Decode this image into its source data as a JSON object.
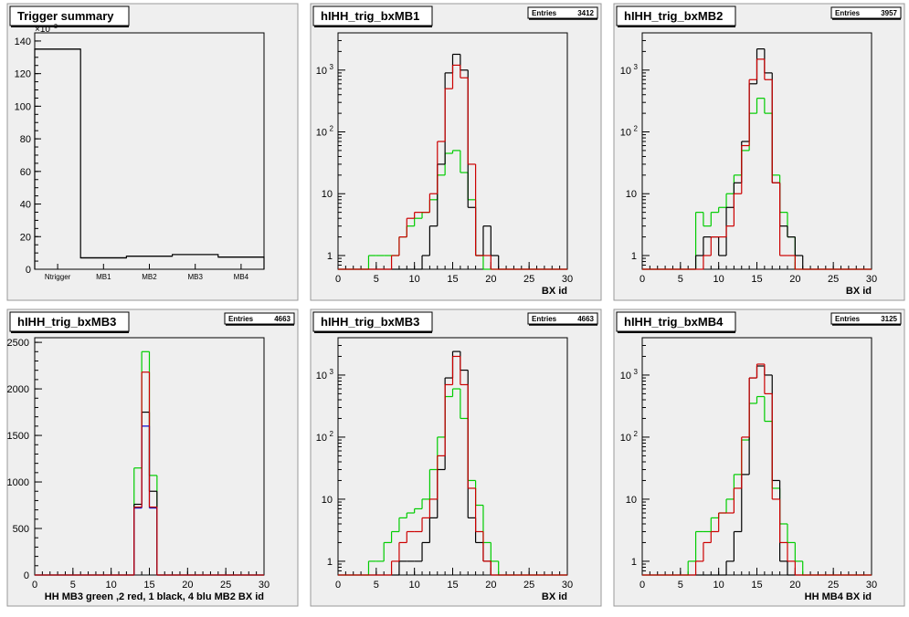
{
  "canvas": {
    "background": "#ffffff",
    "pad_color": "#efefef",
    "frame_color": "#999999",
    "colors": {
      "black": "#000000",
      "red": "#cc0000",
      "green": "#00cc00",
      "blue": "#0000cc"
    }
  },
  "entries_label": "Entries",
  "chart_data": [
    {
      "title": "Trigger summary",
      "type": "bar",
      "categories": [
        "Ntrigger",
        "MB1",
        "MB2",
        "MB3",
        "MB4"
      ],
      "values": [
        135000,
        7000,
        8000,
        9000,
        7500
      ],
      "ylim": [
        0,
        145000
      ],
      "y_multiplier_label": "×10",
      "y_multiplier_exp": "3",
      "yticks": [
        {
          "v": 0,
          "label": "0"
        },
        {
          "v": 20000,
          "label": "20"
        },
        {
          "v": 40000,
          "label": "40"
        },
        {
          "v": 60000,
          "label": "60"
        },
        {
          "v": 80000,
          "label": "80"
        },
        {
          "v": 100000,
          "label": "100"
        },
        {
          "v": 120000,
          "label": "120"
        },
        {
          "v": 140000,
          "label": "140"
        }
      ],
      "xlabel": "",
      "log": false
    },
    {
      "title": "hIHH_trig_bxMB1",
      "entries": "3412",
      "type": "step",
      "log": true,
      "xlim": [
        0,
        30
      ],
      "ylim": [
        0.6,
        4000
      ],
      "xlabel": "BX id",
      "xticks": [
        0,
        5,
        10,
        15,
        20,
        25,
        30
      ],
      "yticks": [
        {
          "v": 1,
          "label": "1"
        },
        {
          "v": 10,
          "label": "10"
        },
        {
          "v": 100,
          "label": "10",
          "sup": "2"
        },
        {
          "v": 1000,
          "label": "10",
          "sup": "3"
        }
      ],
      "series": [
        {
          "color": "green",
          "values": [
            0,
            0,
            0,
            0,
            1,
            1,
            1,
            1,
            2,
            3,
            4,
            5,
            8,
            20,
            45,
            50,
            22,
            8,
            1,
            0,
            0,
            0,
            0,
            0,
            0,
            0,
            0,
            0,
            0,
            0
          ]
        },
        {
          "color": "black",
          "values": [
            0,
            0,
            0,
            0,
            0,
            0,
            0,
            0,
            0,
            0,
            0,
            1,
            3,
            30,
            900,
            1800,
            1000,
            6,
            1,
            3,
            1,
            0,
            0,
            0,
            0,
            0,
            0,
            0,
            0,
            0
          ]
        },
        {
          "color": "red",
          "values": [
            0,
            0,
            0,
            0,
            0,
            0,
            0,
            1,
            2,
            4,
            5,
            5,
            10,
            70,
            500,
            1200,
            750,
            30,
            1,
            1,
            0,
            0,
            0,
            0,
            0,
            0,
            0,
            0,
            0,
            0
          ]
        }
      ]
    },
    {
      "title": "hIHH_trig_bxMB2",
      "entries": "3957",
      "type": "step",
      "log": true,
      "xlim": [
        0,
        30
      ],
      "ylim": [
        0.6,
        4000
      ],
      "xlabel": "BX id",
      "xticks": [
        0,
        5,
        10,
        15,
        20,
        25,
        30
      ],
      "yticks": [
        {
          "v": 1,
          "label": "1"
        },
        {
          "v": 10,
          "label": "10"
        },
        {
          "v": 100,
          "label": "10",
          "sup": "2"
        },
        {
          "v": 1000,
          "label": "10",
          "sup": "3"
        }
      ],
      "series": [
        {
          "color": "green",
          "values": [
            0,
            0,
            0,
            0,
            0,
            0,
            0,
            5,
            3,
            5,
            6,
            10,
            20,
            50,
            200,
            350,
            200,
            20,
            5,
            2,
            0,
            0,
            0,
            0,
            0,
            0,
            0,
            0,
            0,
            0
          ]
        },
        {
          "color": "black",
          "values": [
            0,
            0,
            0,
            0,
            0,
            0,
            0,
            1,
            2,
            2,
            1,
            6,
            15,
            70,
            600,
            2200,
            900,
            15,
            3,
            2,
            1,
            0,
            0,
            0,
            0,
            0,
            0,
            0,
            0,
            0
          ]
        },
        {
          "color": "red",
          "values": [
            0,
            0,
            0,
            0,
            0,
            0,
            0,
            0,
            1,
            2,
            2,
            3,
            10,
            60,
            700,
            1500,
            700,
            15,
            1,
            1,
            0,
            0,
            0,
            0,
            0,
            0,
            0,
            0,
            0,
            0
          ]
        }
      ]
    },
    {
      "title": "hIHH_trig_bxMB3",
      "entries": "4663",
      "type": "step",
      "log": false,
      "xlim": [
        0,
        30
      ],
      "ylim": [
        0,
        2550
      ],
      "xlabel": "HH  MB3 green ,2 red, 1 black, 4 blu     MB2 BX id",
      "xticks": [
        0,
        5,
        10,
        15,
        20,
        25,
        30
      ],
      "yticks": [
        {
          "v": 0,
          "label": "0"
        },
        {
          "v": 500,
          "label": "500"
        },
        {
          "v": 1000,
          "label": "1000"
        },
        {
          "v": 1500,
          "label": "1500"
        },
        {
          "v": 2000,
          "label": "2000"
        },
        {
          "v": 2500,
          "label": "2500"
        }
      ],
      "series": [
        {
          "color": "green",
          "values": [
            0,
            0,
            0,
            0,
            0,
            0,
            0,
            0,
            0,
            0,
            0,
            0,
            0,
            1150,
            2400,
            1070,
            0,
            0,
            0,
            0,
            0,
            0,
            0,
            0,
            0,
            0,
            0,
            0,
            0,
            0
          ]
        },
        {
          "color": "black",
          "values": [
            0,
            0,
            0,
            0,
            0,
            0,
            0,
            0,
            0,
            0,
            0,
            0,
            0,
            760,
            1750,
            900,
            0,
            0,
            0,
            0,
            0,
            0,
            0,
            0,
            0,
            0,
            0,
            0,
            0,
            0
          ]
        },
        {
          "color": "blue",
          "values": [
            0,
            0,
            0,
            0,
            0,
            0,
            0,
            0,
            0,
            0,
            0,
            0,
            0,
            720,
            1600,
            720,
            0,
            0,
            0,
            0,
            0,
            0,
            0,
            0,
            0,
            0,
            0,
            0,
            0,
            0
          ]
        },
        {
          "color": "red",
          "values": [
            0,
            0,
            0,
            0,
            0,
            0,
            0,
            0,
            0,
            0,
            0,
            0,
            0,
            730,
            2180,
            730,
            0,
            0,
            0,
            0,
            0,
            0,
            0,
            0,
            0,
            0,
            0,
            0,
            0,
            0
          ]
        }
      ]
    },
    {
      "title": "hIHH_trig_bxMB3",
      "entries": "4663",
      "type": "step",
      "log": true,
      "xlim": [
        0,
        30
      ],
      "ylim": [
        0.6,
        4000
      ],
      "xlabel": "BX id",
      "xticks": [
        0,
        5,
        10,
        15,
        20,
        25,
        30
      ],
      "yticks": [
        {
          "v": 1,
          "label": "1"
        },
        {
          "v": 10,
          "label": "10"
        },
        {
          "v": 100,
          "label": "10",
          "sup": "2"
        },
        {
          "v": 1000,
          "label": "10",
          "sup": "3"
        }
      ],
      "series": [
        {
          "color": "green",
          "values": [
            0,
            0,
            0,
            0,
            1,
            1,
            2,
            3,
            5,
            6,
            7,
            10,
            30,
            100,
            450,
            600,
            200,
            20,
            8,
            2,
            1,
            0,
            0,
            0,
            0,
            0,
            0,
            0,
            0,
            0
          ]
        },
        {
          "color": "black",
          "values": [
            0,
            0,
            0,
            0,
            0,
            0,
            0,
            0,
            1,
            1,
            1,
            2,
            5,
            30,
            900,
            2400,
            1200,
            5,
            2,
            1,
            0,
            0,
            0,
            0,
            0,
            0,
            0,
            0,
            0,
            0
          ]
        },
        {
          "color": "red",
          "values": [
            0,
            0,
            0,
            0,
            0,
            0,
            0,
            1,
            2,
            3,
            3,
            5,
            10,
            50,
            700,
            2000,
            700,
            15,
            3,
            1,
            0,
            0,
            0,
            0,
            0,
            0,
            0,
            0,
            0,
            0
          ]
        }
      ]
    },
    {
      "title": "hIHH_trig_bxMB4",
      "entries": "3125",
      "type": "step",
      "log": true,
      "xlim": [
        0,
        30
      ],
      "ylim": [
        0.6,
        4000
      ],
      "xlabel": "HH MB4 BX id",
      "xticks": [
        0,
        5,
        10,
        15,
        20,
        25,
        30
      ],
      "yticks": [
        {
          "v": 1,
          "label": "1"
        },
        {
          "v": 10,
          "label": "10"
        },
        {
          "v": 100,
          "label": "10",
          "sup": "2"
        },
        {
          "v": 1000,
          "label": "10",
          "sup": "3"
        }
      ],
      "series": [
        {
          "color": "green",
          "values": [
            0,
            0,
            0,
            0,
            0,
            0,
            1,
            3,
            3,
            5,
            6,
            10,
            25,
            90,
            350,
            450,
            180,
            15,
            4,
            2,
            1,
            0,
            0,
            0,
            0,
            0,
            0,
            0,
            0,
            0
          ]
        },
        {
          "color": "black",
          "values": [
            0,
            0,
            0,
            0,
            0,
            0,
            0,
            0,
            0,
            0,
            0,
            1,
            3,
            25,
            900,
            1400,
            1000,
            20,
            1,
            0,
            0,
            0,
            0,
            0,
            0,
            0,
            0,
            0,
            0,
            0
          ]
        },
        {
          "color": "red",
          "values": [
            0,
            0,
            0,
            0,
            0,
            0,
            0,
            1,
            2,
            3,
            6,
            6,
            15,
            100,
            900,
            1500,
            500,
            10,
            2,
            1,
            0,
            0,
            0,
            0,
            0,
            0,
            0,
            0,
            0,
            0
          ]
        }
      ]
    }
  ]
}
